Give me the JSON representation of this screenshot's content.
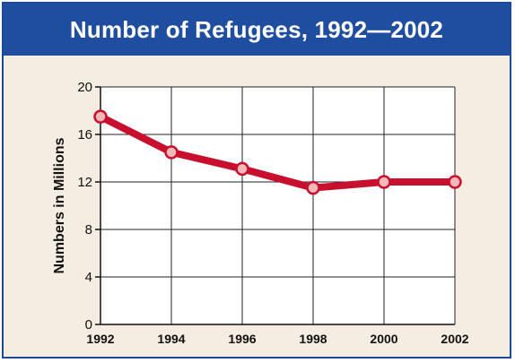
{
  "chart_data": {
    "type": "line",
    "title": "Number of Refugees, 1992—2002",
    "xlabel": "",
    "ylabel": "Numbers in Millions",
    "x": [
      1992,
      1994,
      1996,
      1998,
      2000,
      2002
    ],
    "x_tick_labels": [
      "1992",
      "1994",
      "1996",
      "1998",
      "2000",
      "2002"
    ],
    "y_ticks": [
      0,
      4,
      8,
      12,
      16,
      20
    ],
    "y_tick_labels": [
      "0",
      "4",
      "8",
      "12",
      "16",
      "20"
    ],
    "ylim": [
      0,
      20
    ],
    "xlim": [
      1992,
      2002
    ],
    "grid": true,
    "series": [
      {
        "values": [
          17.5,
          14.5,
          13.1,
          11.5,
          12.0,
          12.0
        ],
        "color": "#c8102e"
      }
    ],
    "colors": {
      "title_bg": "#1f4ea1",
      "plot_bg": "#ffffff",
      "frame_bg": "#f6ede2",
      "line": "#c8102e",
      "marker_fill": "#f4b8b8"
    }
  }
}
